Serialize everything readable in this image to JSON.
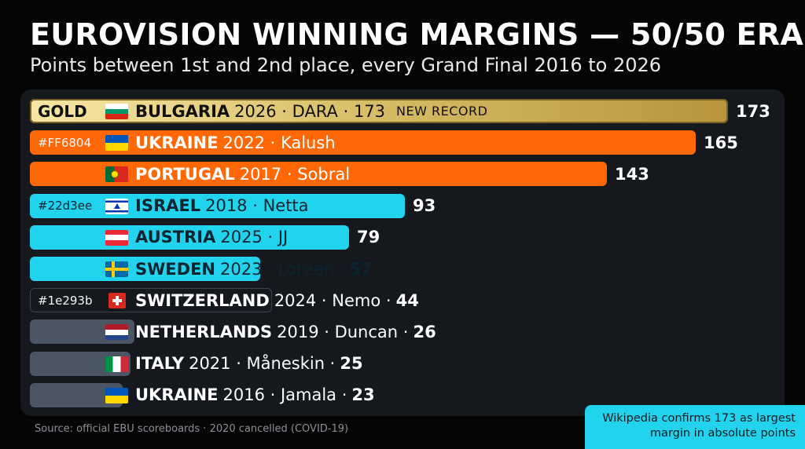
{
  "header": {
    "title": "EUROVISION WINNING MARGINS — 50/50 ERA",
    "subtitle": "Points between 1st and 2nd place, every Grand Final 2016 to 2026"
  },
  "colors": {
    "background": "#050506",
    "panel": "#15181d",
    "orange": "#FF6804",
    "cyan": "#22d3ee",
    "gray": "#1e293b",
    "gold": "#d9c06a"
  },
  "chart_data": {
    "type": "bar",
    "orientation": "horizontal",
    "xlim": [
      0,
      173
    ],
    "grid": false,
    "rows": [
      {
        "country": "BULGARIA",
        "rest": "2026 · DARA · 173",
        "badge": "NEW RECORD",
        "tag": "GOLD",
        "flag": "bulgaria",
        "tier": "gold",
        "value": 173,
        "value_label": "173"
      },
      {
        "country": "UKRAINE",
        "rest": "2022 · Kalush",
        "tag": "#FF6804",
        "flag": "ukraine",
        "tier": "orange",
        "value": 165,
        "value_label": "165"
      },
      {
        "country": "PORTUGAL",
        "rest": "2017 · Sobral",
        "flag": "portugal",
        "tier": "orange",
        "value": 143,
        "value_label": "143"
      },
      {
        "country": "ISRAEL",
        "rest": "2018 · Netta",
        "tag": "#22d3ee",
        "flag": "israel",
        "tier": "cyan",
        "value": 93,
        "value_label": "93"
      },
      {
        "country": "AUSTRIA",
        "rest": "2025 · JJ",
        "flag": "austria",
        "tier": "cyan",
        "value": 79,
        "value_label": "79"
      },
      {
        "country": "SWEDEN",
        "rest": "2023 · Loreen ·",
        "inline_value": "57",
        "flag": "sweden",
        "tier": "cyan",
        "value": 57
      },
      {
        "country": "SWITZERLAND",
        "rest": "2024 · Nemo ·",
        "inline_value": "44",
        "tag": "#1e293b",
        "flag": "switzerland",
        "tier": "swiss",
        "value": 44
      },
      {
        "country": "NETHERLANDS",
        "rest": "2019 · Duncan ·",
        "inline_value": "26",
        "flag": "netherlands",
        "tier": "gray",
        "value": 26
      },
      {
        "country": "ITALY",
        "rest": "2021 · Måneskin ·",
        "inline_value": "25",
        "flag": "italy",
        "tier": "gray",
        "value": 25
      },
      {
        "country": "UKRAINE",
        "rest": "2016 · Jamala ·",
        "inline_value": "23",
        "flag": "ukraine",
        "tier": "gray",
        "value": 23
      }
    ]
  },
  "footer": {
    "source": "Source: official EBU scoreboards · 2020 cancelled (COVID-19)",
    "note_line1": "Wikipedia confirms 173 as largest",
    "note_line2": "margin in absolute points"
  }
}
